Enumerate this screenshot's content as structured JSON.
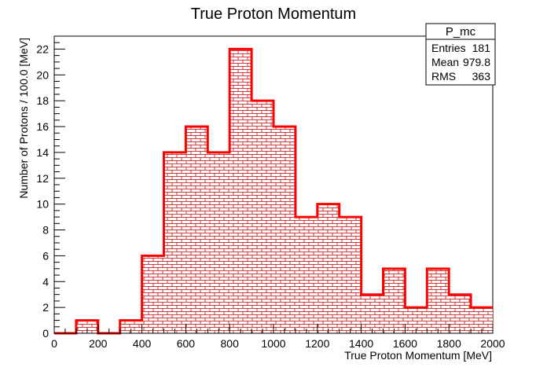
{
  "chart_data": {
    "type": "bar",
    "title": "True Proton Momentum",
    "xlabel": "True Proton Momentum [MeV]",
    "ylabel": "Number of Protons / 100.0 [MeV]",
    "x_bin_edges": [
      0,
      100,
      200,
      300,
      400,
      500,
      600,
      700,
      800,
      900,
      1000,
      1100,
      1200,
      1300,
      1400,
      1500,
      1600,
      1700,
      1800,
      1900,
      2000
    ],
    "values": [
      0,
      1,
      0,
      1,
      6,
      14,
      16,
      14,
      22,
      18,
      16,
      9,
      10,
      9,
      3,
      5,
      2,
      5,
      3,
      2
    ],
    "xlim": [
      0,
      2000
    ],
    "ylim": [
      0,
      23
    ],
    "x_ticks": [
      0,
      200,
      400,
      600,
      800,
      1000,
      1200,
      1400,
      1600,
      1800,
      2000
    ],
    "y_ticks": [
      0,
      2,
      4,
      6,
      8,
      10,
      12,
      14,
      16,
      18,
      20,
      22
    ],
    "grid": false,
    "line_color": "#ff0000",
    "fill_pattern": "brick",
    "stats_box": {
      "name": "P_mc",
      "rows": [
        {
          "label": "Entries",
          "value": "181"
        },
        {
          "label": "Mean",
          "value": "979.8"
        },
        {
          "label": "RMS",
          "value": "363"
        }
      ]
    }
  }
}
